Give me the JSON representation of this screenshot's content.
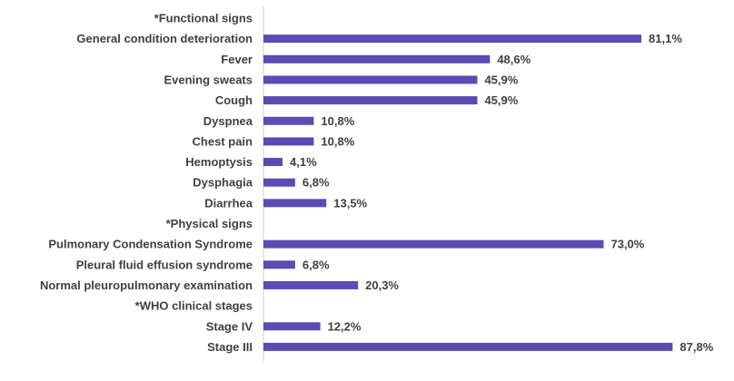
{
  "chart_data": {
    "type": "bar",
    "orientation": "horizontal",
    "title": "",
    "xlabel": "",
    "ylabel": "",
    "xlim": [
      0,
      100
    ],
    "grid": false,
    "legend": "none",
    "bar_color": "#5a4bb5",
    "categories": [
      "*Functional signs",
      "General condition deterioration",
      "Fever",
      "Evening sweats",
      "Cough",
      "Dyspnea",
      "Chest pain",
      "Hemoptysis",
      "Dysphagia",
      "Diarrhea",
      "*Physical signs",
      "Pulmonary Condensation Syndrome",
      "Pleural fluid effusion syndrome",
      "Normal pleuropulmonary examination",
      "*WHO clinical stages",
      "Stage IV",
      "Stage III"
    ],
    "values": [
      null,
      81.1,
      48.6,
      45.9,
      45.9,
      10.8,
      10.8,
      4.1,
      6.8,
      13.5,
      null,
      73.0,
      6.8,
      20.3,
      null,
      12.2,
      87.8
    ],
    "value_labels": [
      "",
      "81,1%",
      "48,6%",
      "45,9%",
      "45,9%",
      "10,8%",
      "10,8%",
      "4,1%",
      "6,8%",
      "13,5%",
      "",
      "73,0%",
      "6,8%",
      "20,3%",
      "",
      "12,2%",
      "87,8%"
    ]
  }
}
